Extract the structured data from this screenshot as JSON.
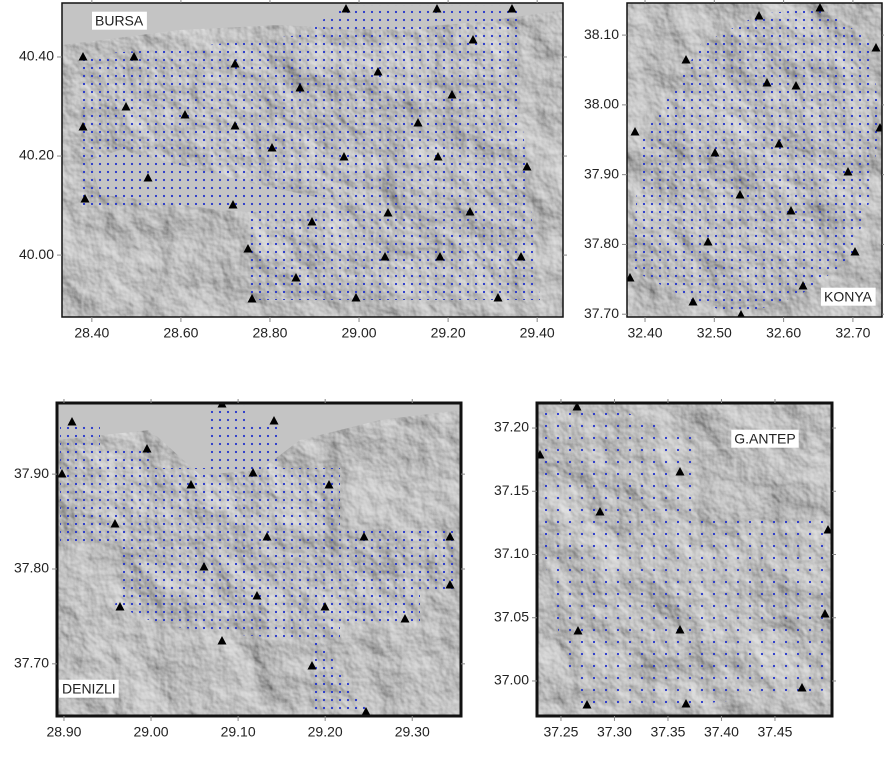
{
  "panels": [
    {
      "label": "BURSA",
      "xlim": [
        28.333,
        29.458
      ],
      "ylim": [
        39.875,
        40.509
      ],
      "xticks": [
        {
          "value": 28.4,
          "label": "28.40"
        },
        {
          "value": 28.6,
          "label": "28.60"
        },
        {
          "value": 28.8,
          "label": "28.80"
        },
        {
          "value": 29.0,
          "label": "29.00"
        },
        {
          "value": 29.2,
          "label": "29.20"
        },
        {
          "value": 29.4,
          "label": "29.40"
        }
      ],
      "yticks": [
        {
          "value": 40.0,
          "label": "40.00"
        },
        {
          "value": 40.2,
          "label": "40.20"
        },
        {
          "value": 40.4,
          "label": "40.40"
        }
      ]
    },
    {
      "label": "KONYA",
      "xlim": [
        32.374,
        32.742
      ],
      "ylim": [
        37.696,
        38.146
      ],
      "xticks": [
        {
          "value": 32.4,
          "label": "32.40"
        },
        {
          "value": 32.5,
          "label": "32.50"
        },
        {
          "value": 32.6,
          "label": "32.60"
        },
        {
          "value": 32.7,
          "label": "32.70"
        }
      ],
      "yticks": [
        {
          "value": 37.7,
          "label": "37.70"
        },
        {
          "value": 37.8,
          "label": "37.80"
        },
        {
          "value": 37.9,
          "label": "37.90"
        },
        {
          "value": 38.0,
          "label": "38.00"
        },
        {
          "value": 38.1,
          "label": "38.10"
        }
      ]
    },
    {
      "label": "DENIZLI",
      "xlim": [
        28.892,
        29.356
      ],
      "ylim": [
        37.645,
        37.975
      ],
      "xticks": [
        {
          "value": 28.9,
          "label": "28.90"
        },
        {
          "value": 29.0,
          "label": "29.00"
        },
        {
          "value": 29.1,
          "label": "29.10"
        },
        {
          "value": 29.2,
          "label": "29.20"
        },
        {
          "value": 29.3,
          "label": "29.30"
        }
      ],
      "yticks": [
        {
          "value": 37.7,
          "label": "37.70"
        },
        {
          "value": 37.8,
          "label": "37.80"
        },
        {
          "value": 37.9,
          "label": "37.90"
        }
      ]
    },
    {
      "label": "G.ANTEP",
      "xlim": [
        37.2276,
        37.5033
      ],
      "ylim": [
        36.9723,
        37.2198
      ],
      "xticks": [
        {
          "value": 37.25,
          "label": "37.25"
        },
        {
          "value": 37.3,
          "label": "37.30"
        },
        {
          "value": 37.35,
          "label": "37.35"
        },
        {
          "value": 37.4,
          "label": "37.40"
        },
        {
          "value": 37.45,
          "label": "37.45"
        }
      ],
      "yticks": [
        {
          "value": 37.0,
          "label": "37.00"
        },
        {
          "value": 37.05,
          "label": "37.05"
        },
        {
          "value": 37.1,
          "label": "37.10"
        },
        {
          "value": 37.15,
          "label": "37.15"
        },
        {
          "value": 37.2,
          "label": "37.20"
        }
      ]
    }
  ]
}
